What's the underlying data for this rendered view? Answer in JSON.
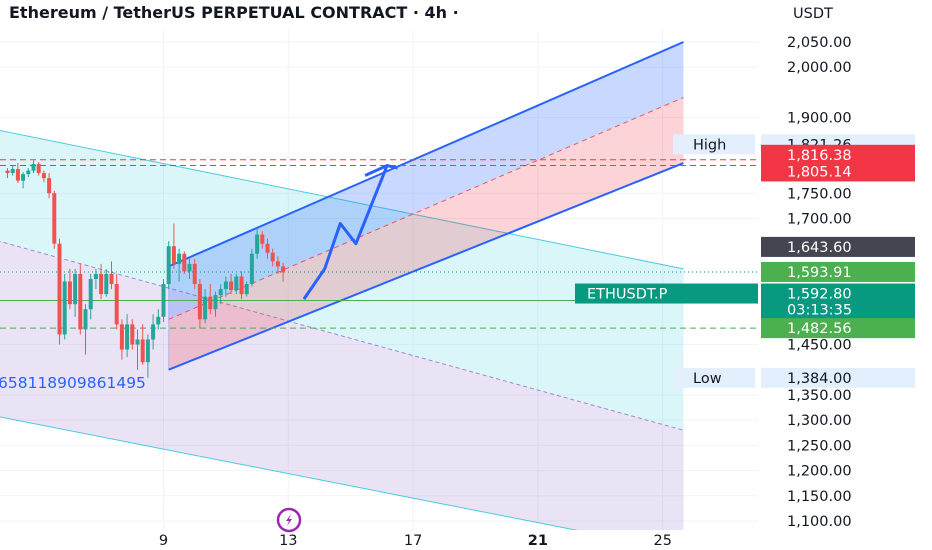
{
  "header": {
    "title": "Ethereum / TetherUS PERPETUAL CONTRACT · 4h ·",
    "currency": "USDT"
  },
  "colors": {
    "up": "#26a69a",
    "down": "#ef5350",
    "channel_blue": "#2962ff",
    "teal_band": "#4dd0e1",
    "grid": "#f0f3fa",
    "ticker_bg": "#089981",
    "green_tag": "#4caf50",
    "red_tag": "#f23645",
    "dark_tag": "#434651",
    "light_tag": "#e3effd"
  },
  "chart_data": {
    "type": "candlestick",
    "symbol": "ETHUSDT.P",
    "interval": "4h",
    "ylim": [
      1100,
      2050
    ],
    "y_ticks": [
      {
        "value": 2050,
        "label": "2,050.00"
      },
      {
        "value": 2000,
        "label": "2,000.00"
      },
      {
        "value": 1900,
        "label": "1,900.00"
      },
      {
        "value": 1750,
        "label": "1,750.00"
      },
      {
        "value": 1700,
        "label": "1,700.00"
      },
      {
        "value": 1450,
        "label": "1,450.00"
      },
      {
        "value": 1350,
        "label": "1,350.00"
      },
      {
        "value": 1300,
        "label": "1,300.00"
      },
      {
        "value": 1250,
        "label": "1,250.00"
      },
      {
        "value": 1200,
        "label": "1,200.00"
      },
      {
        "value": 1150,
        "label": "1,150.00"
      },
      {
        "value": 1100,
        "label": "1,100.00"
      }
    ],
    "x_ticks": [
      {
        "label": "9",
        "bar": 30,
        "bold": false
      },
      {
        "label": "13",
        "bar": 54,
        "bold": false
      },
      {
        "label": "17",
        "bar": 78,
        "bold": false
      },
      {
        "label": "21",
        "bar": 102,
        "bold": true
      },
      {
        "label": "25",
        "bar": 126,
        "bold": false
      }
    ],
    "candles": [
      [
        1795,
        1800,
        1780,
        1790
      ],
      [
        1790,
        1805,
        1785,
        1798
      ],
      [
        1798,
        1810,
        1770,
        1775
      ],
      [
        1775,
        1792,
        1760,
        1788
      ],
      [
        1788,
        1800,
        1782,
        1795
      ],
      [
        1795,
        1815,
        1790,
        1808
      ],
      [
        1808,
        1812,
        1785,
        1790
      ],
      [
        1790,
        1795,
        1772,
        1780
      ],
      [
        1780,
        1790,
        1740,
        1750
      ],
      [
        1750,
        1755,
        1640,
        1650
      ],
      [
        1650,
        1660,
        1450,
        1470
      ],
      [
        1470,
        1590,
        1460,
        1575
      ],
      [
        1575,
        1600,
        1520,
        1530
      ],
      [
        1530,
        1600,
        1505,
        1590
      ],
      [
        1590,
        1610,
        1470,
        1480
      ],
      [
        1480,
        1530,
        1430,
        1520
      ],
      [
        1520,
        1590,
        1500,
        1580
      ],
      [
        1580,
        1600,
        1560,
        1590
      ],
      [
        1590,
        1610,
        1540,
        1550
      ],
      [
        1550,
        1600,
        1545,
        1590
      ],
      [
        1590,
        1615,
        1560,
        1570
      ],
      [
        1570,
        1590,
        1480,
        1490
      ],
      [
        1490,
        1500,
        1420,
        1440
      ],
      [
        1440,
        1510,
        1425,
        1490
      ],
      [
        1490,
        1500,
        1440,
        1450
      ],
      [
        1450,
        1480,
        1400,
        1460
      ],
      [
        1460,
        1490,
        1410,
        1415
      ],
      [
        1415,
        1470,
        1384,
        1460
      ],
      [
        1460,
        1510,
        1440,
        1490
      ],
      [
        1490,
        1520,
        1480,
        1505
      ],
      [
        1505,
        1580,
        1495,
        1570
      ],
      [
        1570,
        1655,
        1560,
        1645
      ],
      [
        1645,
        1690,
        1600,
        1610
      ],
      [
        1610,
        1640,
        1575,
        1630
      ],
      [
        1630,
        1635,
        1590,
        1595
      ],
      [
        1595,
        1620,
        1580,
        1610
      ],
      [
        1610,
        1620,
        1560,
        1570
      ],
      [
        1570,
        1580,
        1482,
        1500
      ],
      [
        1500,
        1560,
        1492,
        1545
      ],
      [
        1545,
        1570,
        1510,
        1520
      ],
      [
        1520,
        1555,
        1505,
        1548
      ],
      [
        1548,
        1570,
        1530,
        1560
      ],
      [
        1560,
        1585,
        1545,
        1575
      ],
      [
        1575,
        1590,
        1550,
        1558
      ],
      [
        1558,
        1590,
        1550,
        1585
      ],
      [
        1585,
        1595,
        1540,
        1550
      ],
      [
        1550,
        1575,
        1545,
        1570
      ],
      [
        1570,
        1640,
        1565,
        1630
      ],
      [
        1630,
        1680,
        1620,
        1668
      ],
      [
        1668,
        1675,
        1640,
        1650
      ],
      [
        1650,
        1660,
        1620,
        1632
      ],
      [
        1632,
        1640,
        1605,
        1615
      ],
      [
        1615,
        1625,
        1590,
        1605
      ],
      [
        1605,
        1612,
        1575,
        1593
      ]
    ],
    "projection_path": [
      [
        57,
        1540
      ],
      [
        61,
        1600
      ],
      [
        64,
        1690
      ],
      [
        67,
        1650
      ],
      [
        73,
        1805
      ],
      [
        75,
        1800
      ]
    ],
    "blue_channel": {
      "upper_from": [
        31,
        1605
      ],
      "upper_to": [
        130,
        2050
      ],
      "lower_from": [
        31,
        1400
      ],
      "lower_to": [
        130,
        1810
      ],
      "mid_from": [
        31,
        1500
      ],
      "mid_to": [
        130,
        1940
      ]
    },
    "teal_band_lines": {
      "top_from": [
        -28,
        1930
      ],
      "top_to": [
        130,
        1600
      ],
      "bottom_from": [
        -28,
        1730
      ],
      "bottom_to": [
        130,
        1280
      ]
    },
    "purple_band_lines": {
      "bottom_from": [
        -28,
        1360
      ],
      "bottom_to": [
        130,
        1040
      ]
    },
    "dashed_lines": [
      1816.38,
      1805.14,
      1482.56
    ],
    "horizontal_lines": [
      1592.8
    ],
    "dotted_lines": [
      1593.91
    ],
    "price_tags": [
      {
        "label": "High",
        "value": 1821.26,
        "text": "1,821.26",
        "style": "light"
      },
      {
        "value": 1816.38,
        "text": "1,816.38",
        "style": "red"
      },
      {
        "value": 1805.14,
        "text": "1,805.14",
        "style": "red"
      },
      {
        "value": 1643.6,
        "text": "1,643.60",
        "style": "dark"
      },
      {
        "value": 1593.91,
        "text": "1,593.91",
        "style": "green"
      },
      {
        "label": "ETHUSDT.P",
        "value": 1592.8,
        "text": "1,592.80",
        "countdown": "03:13:35",
        "style": "ticker"
      },
      {
        "value": 1482.56,
        "text": "1,482.56",
        "style": "green"
      },
      {
        "label": "Low",
        "value": 1384.0,
        "text": "1,384.00",
        "style": "light"
      }
    ],
    "overlay_text": "658118909861495"
  }
}
